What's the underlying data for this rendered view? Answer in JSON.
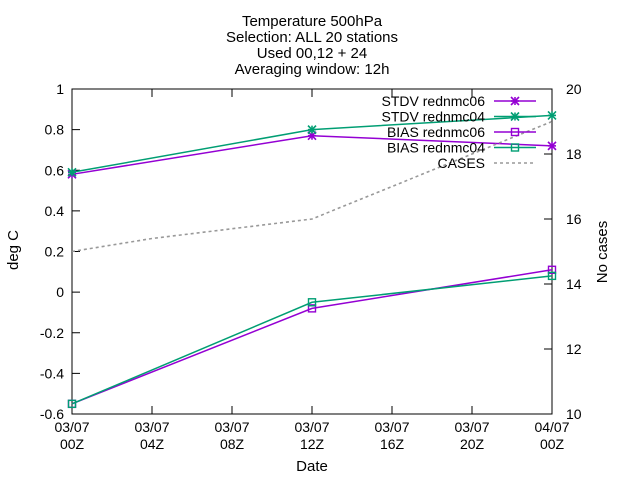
{
  "chart_data": {
    "type": "line",
    "title_lines": [
      "Temperature 500hPa",
      "Selection: ALL      20 stations",
      "Used 00,12 + 24",
      "Averaging window: 12h"
    ],
    "xlabel": "Date",
    "ylabel": "deg C",
    "y2label": "No cases",
    "x_hours": [
      0,
      4,
      8,
      12,
      16,
      20,
      24
    ],
    "x_tick_labels": [
      [
        "03/07",
        "00Z"
      ],
      [
        "03/07",
        "04Z"
      ],
      [
        "03/07",
        "08Z"
      ],
      [
        "03/07",
        "12Z"
      ],
      [
        "03/07",
        "16Z"
      ],
      [
        "03/07",
        "20Z"
      ],
      [
        "04/07",
        "00Z"
      ]
    ],
    "xlim": [
      0,
      24
    ],
    "ylim": [
      -0.6,
      1.0
    ],
    "y_ticks": [
      -0.6,
      -0.4,
      -0.2,
      0,
      0.2,
      0.4,
      0.6,
      0.8,
      1
    ],
    "y_tick_labels": [
      "-0.6",
      "-0.4",
      "-0.2",
      "0",
      "0.2",
      "0.4",
      "0.6",
      "0.8",
      "1"
    ],
    "y2lim": [
      10,
      20
    ],
    "y2_ticks": [
      10,
      12,
      14,
      16,
      18,
      20
    ],
    "y2_tick_labels": [
      "10",
      "12",
      "14",
      "16",
      "18",
      "20"
    ],
    "legend_position": "top-right",
    "series": [
      {
        "name": "STDV rednmc06",
        "axis": "y1",
        "color": "#9400d3",
        "marker": "star",
        "dash": "solid",
        "x": [
          0,
          12,
          24
        ],
        "y": [
          0.58,
          0.77,
          0.72
        ]
      },
      {
        "name": "STDV rednmc04",
        "axis": "y1",
        "color": "#009e73",
        "marker": "star",
        "dash": "solid",
        "x": [
          0,
          12,
          24
        ],
        "y": [
          0.59,
          0.8,
          0.87
        ]
      },
      {
        "name": "BIAS rednmc06",
        "axis": "y1",
        "color": "#9400d3",
        "marker": "square",
        "dash": "solid",
        "x": [
          0,
          12,
          24
        ],
        "y": [
          -0.55,
          -0.08,
          0.11
        ]
      },
      {
        "name": "BIAS rednmc04",
        "axis": "y1",
        "color": "#009e73",
        "marker": "square",
        "dash": "solid",
        "x": [
          0,
          12,
          24
        ],
        "y": [
          -0.55,
          -0.05,
          0.08
        ]
      },
      {
        "name": "CASES",
        "axis": "y2",
        "color": "#999999",
        "marker": "none",
        "dash": "dashed",
        "x": [
          0,
          4,
          8,
          12,
          16,
          20,
          24
        ],
        "y": [
          15,
          15.4,
          15.7,
          16,
          17,
          18,
          19
        ]
      }
    ]
  }
}
